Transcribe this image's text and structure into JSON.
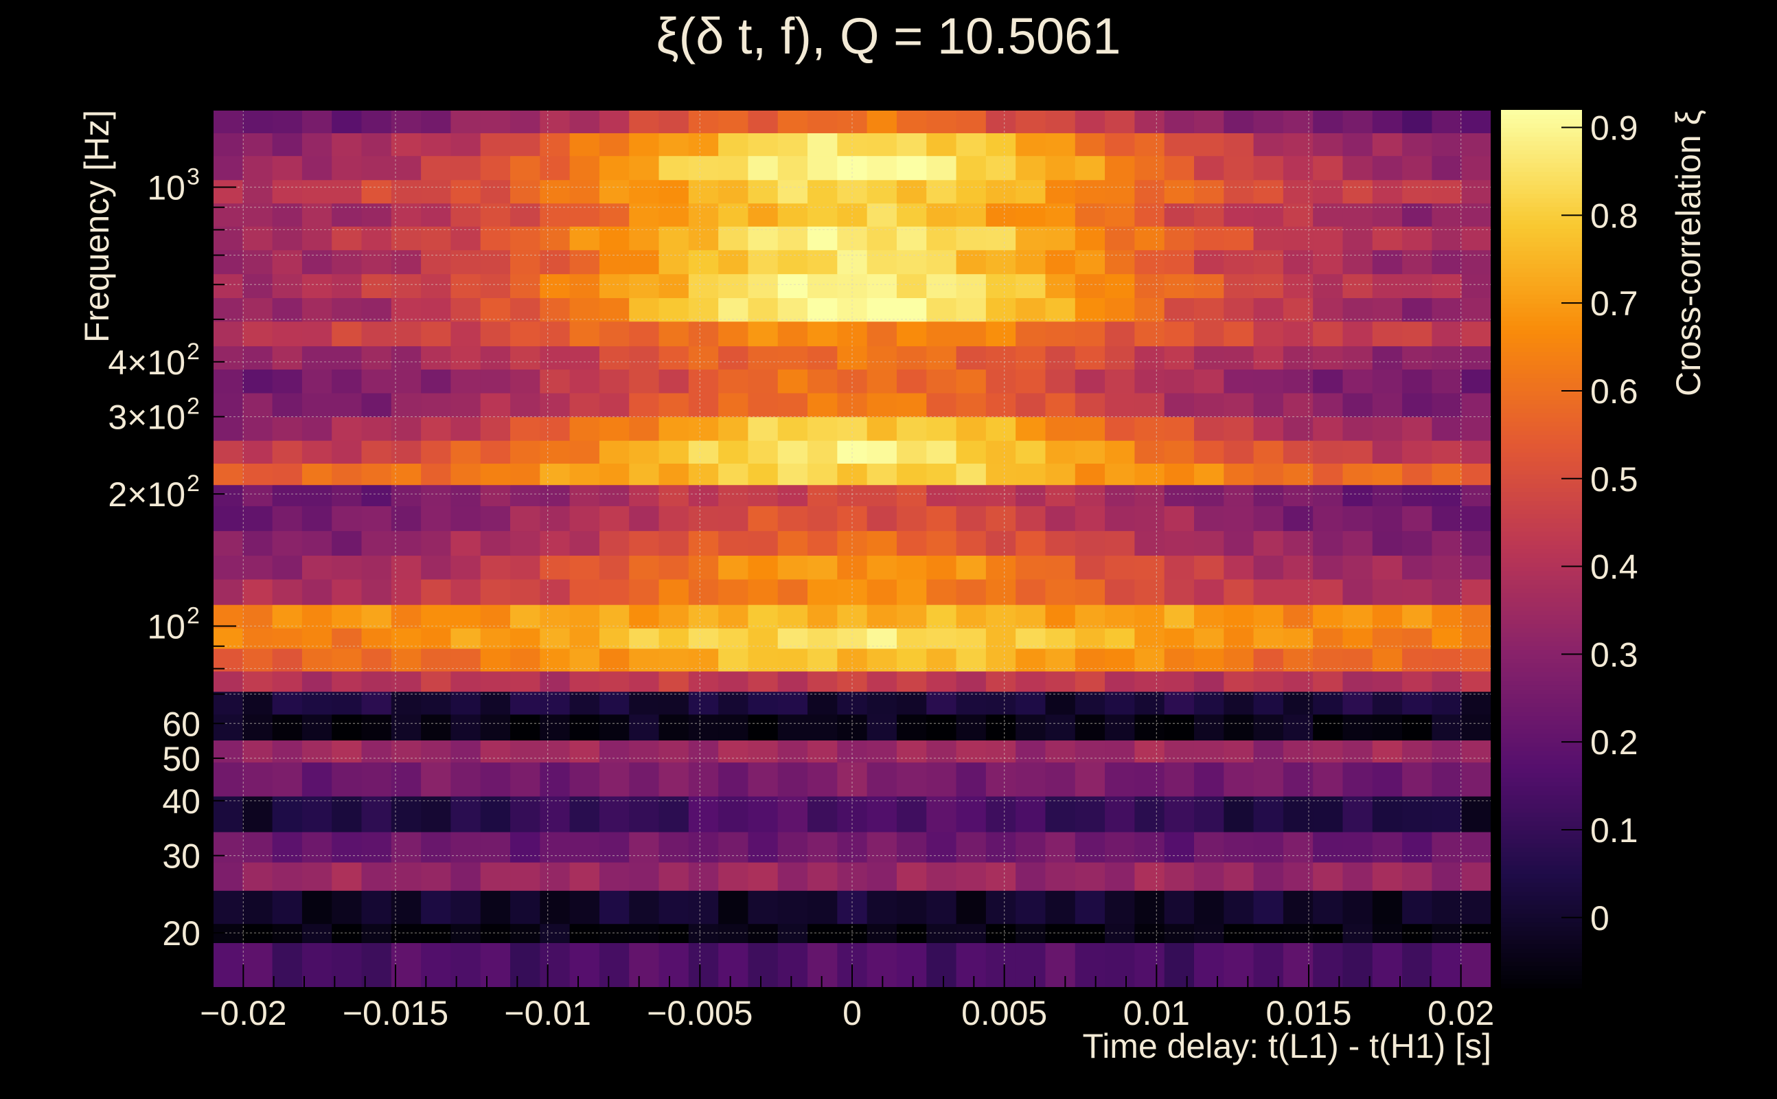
{
  "chart_data": {
    "type": "heatmap",
    "title": "ξ(δ t, f), Q = 10.5061",
    "xlabel": "Time delay: t(L1) - t(H1) [s]",
    "ylabel": "Frequency [Hz]",
    "colorbar_label": "Cross-correlation ξ",
    "xlim": [
      -0.021,
      0.021
    ],
    "ylim": [
      15,
      1500
    ],
    "y_scale": "log",
    "zlim": [
      -0.08,
      0.92
    ],
    "grid": true,
    "x_ticks": [
      {
        "value": -0.02,
        "label": "−0.02"
      },
      {
        "value": -0.015,
        "label": "−0.015"
      },
      {
        "value": -0.01,
        "label": "−0.01"
      },
      {
        "value": -0.005,
        "label": "−0.005"
      },
      {
        "value": 0,
        "label": "0"
      },
      {
        "value": 0.005,
        "label": "0.005"
      },
      {
        "value": 0.01,
        "label": "0.01"
      },
      {
        "value": 0.015,
        "label": "0.015"
      },
      {
        "value": 0.02,
        "label": "0.02"
      }
    ],
    "y_ticks": [
      {
        "value": 20,
        "label": "20",
        "exp": ""
      },
      {
        "value": 30,
        "label": "30",
        "exp": ""
      },
      {
        "value": 40,
        "label": "40",
        "exp": ""
      },
      {
        "value": 50,
        "label": "50",
        "exp": ""
      },
      {
        "value": 60,
        "label": "60",
        "exp": ""
      },
      {
        "value": 100,
        "label": "10",
        "exp": "2"
      },
      {
        "value": 200,
        "label": "2×10",
        "exp": "2"
      },
      {
        "value": 300,
        "label": "3×10",
        "exp": "2"
      },
      {
        "value": 400,
        "label": "4×10",
        "exp": "2"
      },
      {
        "value": 1000,
        "label": "10",
        "exp": "3"
      }
    ],
    "z_ticks": [
      {
        "value": 0,
        "label": "0"
      },
      {
        "value": 0.1,
        "label": "0.1"
      },
      {
        "value": 0.2,
        "label": "0.2"
      },
      {
        "value": 0.3,
        "label": "0.3"
      },
      {
        "value": 0.4,
        "label": "0.4"
      },
      {
        "value": 0.5,
        "label": "0.5"
      },
      {
        "value": 0.6,
        "label": "0.6"
      },
      {
        "value": 0.7,
        "label": "0.7"
      },
      {
        "value": 0.8,
        "label": "0.8"
      },
      {
        "value": 0.9,
        "label": "0.9"
      }
    ],
    "x_bin_count": 43,
    "frequency_bands": [
      {
        "f_low": 15,
        "f_high": 19,
        "peak": 0.16,
        "edge": 0.15
      },
      {
        "f_low": 19,
        "f_high": 21,
        "peak": -0.06,
        "edge": -0.07
      },
      {
        "f_low": 21,
        "f_high": 25,
        "peak": 0.0,
        "edge": -0.01
      },
      {
        "f_low": 25,
        "f_high": 29,
        "peak": 0.34,
        "edge": 0.33
      },
      {
        "f_low": 29,
        "f_high": 34,
        "peak": 0.24,
        "edge": 0.22
      },
      {
        "f_low": 34,
        "f_high": 41,
        "peak": 0.16,
        "edge": 0.02
      },
      {
        "f_low": 41,
        "f_high": 49,
        "peak": 0.27,
        "edge": 0.24
      },
      {
        "f_low": 49,
        "f_high": 55,
        "peak": 0.35,
        "edge": 0.34
      },
      {
        "f_low": 55,
        "f_high": 63,
        "peak": -0.05,
        "edge": -0.05
      },
      {
        "f_low": 63,
        "f_high": 71,
        "peak": 0.02,
        "edge": 0.03
      },
      {
        "f_low": 71,
        "f_high": 79,
        "peak": 0.44,
        "edge": 0.4
      },
      {
        "f_low": 79,
        "f_high": 89,
        "peak": 0.78,
        "edge": 0.55
      },
      {
        "f_low": 89,
        "f_high": 99,
        "peak": 0.85,
        "edge": 0.62
      },
      {
        "f_low": 99,
        "f_high": 112,
        "peak": 0.75,
        "edge": 0.66
      },
      {
        "f_low": 112,
        "f_high": 128,
        "peak": 0.66,
        "edge": 0.36
      },
      {
        "f_low": 128,
        "f_high": 145,
        "peak": 0.7,
        "edge": 0.3
      },
      {
        "f_low": 145,
        "f_high": 165,
        "peak": 0.58,
        "edge": 0.26
      },
      {
        "f_low": 165,
        "f_high": 188,
        "peak": 0.52,
        "edge": 0.22
      },
      {
        "f_low": 188,
        "f_high": 210,
        "peak": 0.48,
        "edge": 0.2
      },
      {
        "f_low": 210,
        "f_high": 235,
        "peak": 0.82,
        "edge": 0.55
      },
      {
        "f_low": 235,
        "f_high": 265,
        "peak": 0.88,
        "edge": 0.4
      },
      {
        "f_low": 265,
        "f_high": 300,
        "peak": 0.82,
        "edge": 0.3
      },
      {
        "f_low": 300,
        "f_high": 340,
        "peak": 0.62,
        "edge": 0.24
      },
      {
        "f_low": 340,
        "f_high": 385,
        "peak": 0.6,
        "edge": 0.22
      },
      {
        "f_low": 385,
        "f_high": 435,
        "peak": 0.6,
        "edge": 0.3
      },
      {
        "f_low": 435,
        "f_high": 495,
        "peak": 0.66,
        "edge": 0.42
      },
      {
        "f_low": 495,
        "f_high": 560,
        "peak": 0.92,
        "edge": 0.28
      },
      {
        "f_low": 560,
        "f_high": 635,
        "peak": 0.9,
        "edge": 0.35
      },
      {
        "f_low": 635,
        "f_high": 720,
        "peak": 0.85,
        "edge": 0.3
      },
      {
        "f_low": 720,
        "f_high": 815,
        "peak": 0.88,
        "edge": 0.35
      },
      {
        "f_low": 815,
        "f_high": 920,
        "peak": 0.8,
        "edge": 0.3
      },
      {
        "f_low": 920,
        "f_high": 1040,
        "peak": 0.82,
        "edge": 0.4
      },
      {
        "f_low": 1040,
        "f_high": 1180,
        "peak": 0.92,
        "edge": 0.3
      },
      {
        "f_low": 1180,
        "f_high": 1330,
        "peak": 0.85,
        "edge": 0.28
      },
      {
        "f_low": 1330,
        "f_high": 1500,
        "peak": 0.6,
        "edge": 0.18
      }
    ]
  }
}
